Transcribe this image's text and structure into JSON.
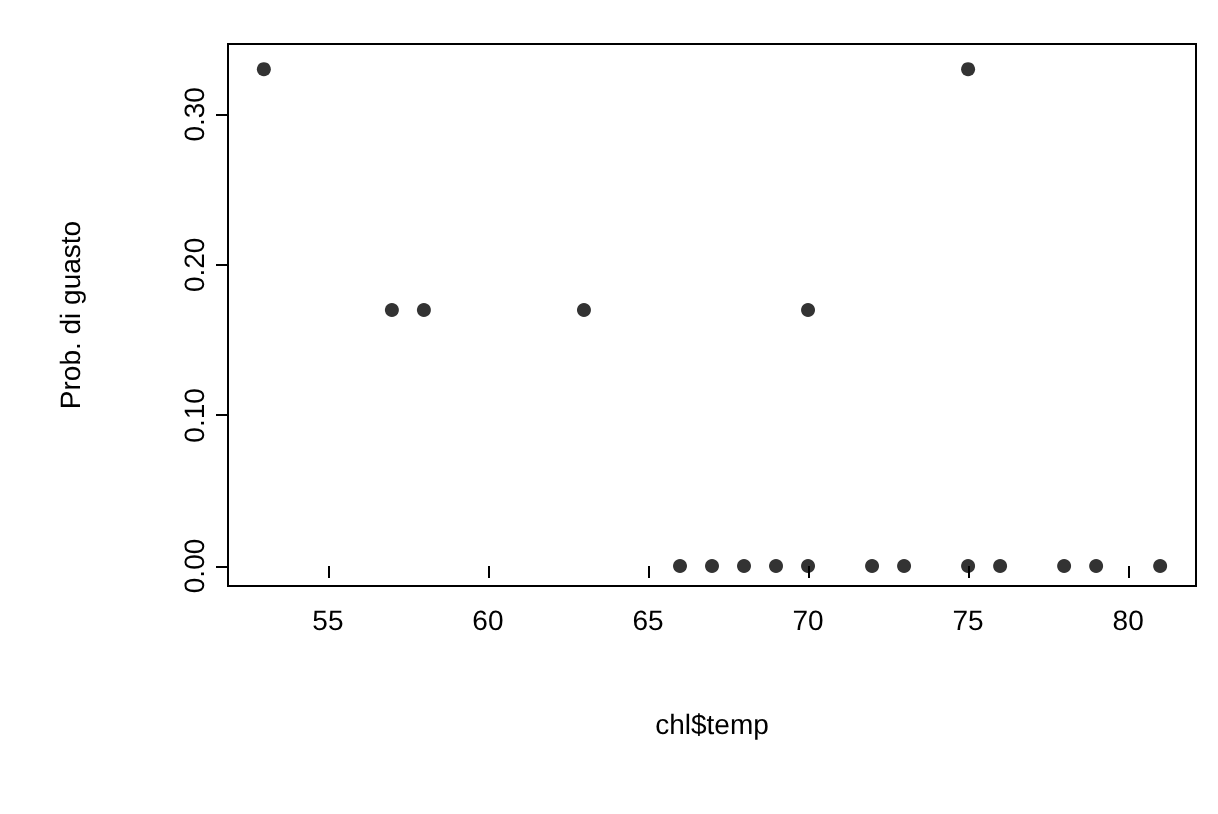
{
  "chart_data": {
    "type": "scatter",
    "xlabel": "chl$temp",
    "ylabel": "Prob. di guasto",
    "x": [
      53,
      57,
      58,
      63,
      66,
      67,
      68,
      69,
      70,
      70,
      72,
      73,
      75,
      75,
      76,
      78,
      79,
      81
    ],
    "values": [
      0.33,
      0.17,
      0.17,
      0.17,
      0,
      0,
      0,
      0,
      0.17,
      0,
      0,
      0,
      0.33,
      0,
      0,
      0,
      0,
      0
    ],
    "color": "#000000",
    "marker": "circle",
    "grid": false,
    "xlim": [
      51.88,
      82.12
    ],
    "xticks": [
      55,
      60,
      65,
      70,
      75,
      80
    ],
    "ylim": [
      -0.0133,
      0.3467
    ],
    "yticks": [
      {
        "value": 0,
        "label": "0.00"
      },
      {
        "value": 0.1,
        "label": "0.10"
      },
      {
        "value": 0.2,
        "label": "0.20"
      },
      {
        "value": 0.3,
        "label": "0.30"
      }
    ]
  }
}
